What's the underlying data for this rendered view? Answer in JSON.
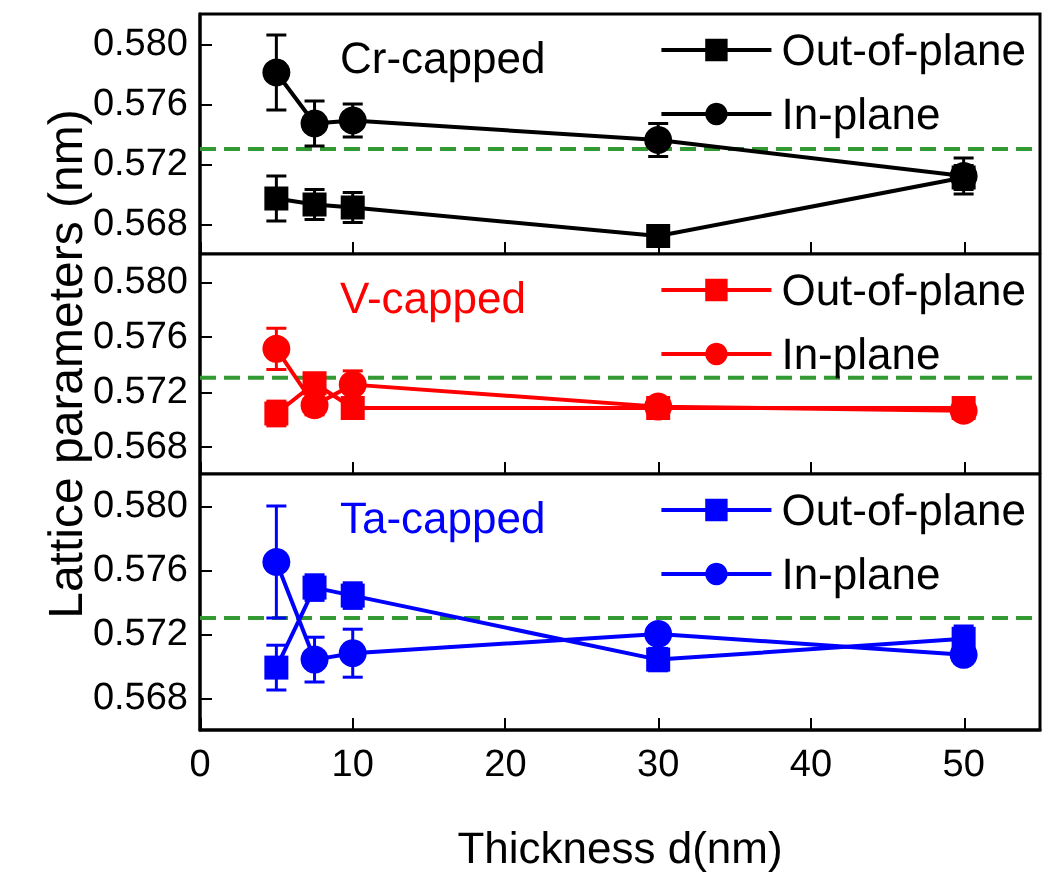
{
  "chart_data": [
    {
      "type": "line",
      "title": "Cr-capped",
      "x": [
        5,
        7.5,
        10,
        30,
        50
      ],
      "xlim": [
        0,
        55
      ],
      "xticks": [
        0,
        10,
        20,
        30,
        40,
        50
      ],
      "ylim": [
        0.566,
        0.582
      ],
      "yticks": [
        {
          "value": 0.568,
          "label": "0.568"
        },
        {
          "value": 0.572,
          "label": "0.572"
        },
        {
          "value": 0.576,
          "label": "0.576"
        },
        {
          "value": 0.58,
          "label": "0.580"
        }
      ],
      "tick_labels": "y",
      "legend": "top right",
      "grid": false,
      "line_style": "solid",
      "ref_lines": [
        {
          "axis": "y",
          "value": 0.573,
          "color": "#339933",
          "line_style": "dashed"
        }
      ],
      "series": [
        {
          "name": "Out-of-plane",
          "color": "#000000",
          "marker": "square",
          "values": [
            0.5697,
            0.5693,
            0.5691,
            0.5672,
            0.5711
          ],
          "errors": [
            0.0015,
            0.001,
            0.001,
            0.0006,
            0.0008
          ]
        },
        {
          "name": "In-plane",
          "color": "#000000",
          "marker": "circle",
          "values": [
            0.5781,
            0.5747,
            0.5749,
            0.5736,
            0.5712
          ],
          "errors": [
            0.0025,
            0.0015,
            0.0011,
            0.0011,
            0.0012
          ]
        }
      ]
    },
    {
      "type": "line",
      "title": "V-capped",
      "ylabel": "Lattice parameters (nm)",
      "x": [
        5,
        7.5,
        10,
        30,
        50
      ],
      "xlim": [
        0,
        55
      ],
      "xticks": [
        0,
        10,
        20,
        30,
        40,
        50
      ],
      "ylim": [
        0.566,
        0.582
      ],
      "yticks": [
        {
          "value": 0.568,
          "label": "0.568"
        },
        {
          "value": 0.572,
          "label": "0.572"
        },
        {
          "value": 0.576,
          "label": "0.576"
        },
        {
          "value": 0.58,
          "label": "0.580"
        }
      ],
      "tick_labels": "y",
      "legend": "top right",
      "grid": false,
      "line_style": "solid",
      "ref_lines": [
        {
          "axis": "y",
          "value": 0.573,
          "color": "#339933",
          "line_style": "dashed"
        }
      ],
      "series": [
        {
          "name": "Out-of-plane",
          "color": "#ff0000",
          "marker": "square",
          "values": [
            0.5704,
            0.5726,
            0.5708,
            0.5708,
            0.5708
          ],
          "errors": [
            0.0009,
            0.0006,
            0.0005,
            0.0003,
            0.0003
          ]
        },
        {
          "name": "In-plane",
          "color": "#ff0000",
          "marker": "circle",
          "values": [
            0.5751,
            0.571,
            0.5725,
            0.5709,
            0.5706
          ],
          "errors": [
            0.0015,
            0.0007,
            0.001,
            0.0003,
            0.0003
          ]
        }
      ]
    },
    {
      "type": "line",
      "title": "Ta-capped",
      "xlabel": "Thickness d(nm)",
      "x": [
        5,
        7.5,
        10,
        30,
        50
      ],
      "xlim": [
        0,
        55
      ],
      "xticks": [
        0,
        10,
        20,
        30,
        40,
        50
      ],
      "ylim": [
        0.566,
        0.582
      ],
      "yticks": [
        {
          "value": 0.568,
          "label": "0.568"
        },
        {
          "value": 0.572,
          "label": "0.572"
        },
        {
          "value": 0.576,
          "label": "0.576"
        },
        {
          "value": 0.58,
          "label": "0.580"
        }
      ],
      "legend": "top right",
      "grid": false,
      "line_style": "solid",
      "ref_lines": [
        {
          "axis": "y",
          "value": 0.573,
          "color": "#339933",
          "line_style": "dashed"
        }
      ],
      "series": [
        {
          "name": "Out-of-plane",
          "color": "#0000ff",
          "marker": "square",
          "values": [
            0.5699,
            0.5749,
            0.5744,
            0.5704,
            0.5717
          ],
          "errors": [
            0.0014,
            0.0008,
            0.0008,
            0.0007,
            0.0008
          ]
        },
        {
          "name": "In-plane",
          "color": "#0000ff",
          "marker": "circle",
          "values": [
            0.5765,
            0.5704,
            0.5708,
            0.572,
            0.5707
          ],
          "errors": [
            0.0035,
            0.0014,
            0.0015,
            0.0005,
            0.0005
          ]
        }
      ]
    }
  ]
}
